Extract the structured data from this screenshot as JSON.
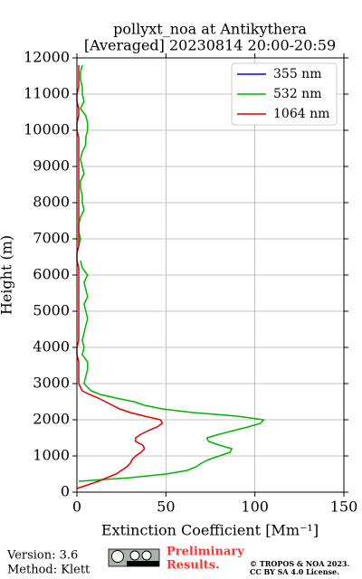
{
  "chart_data": {
    "type": "line",
    "title": [
      "pollyxt_noa at Antikythera",
      "[Averaged] 20230814 20:00-20:59"
    ],
    "xlabel": "Extinction Coefficient [Mm⁻¹]",
    "ylabel": "Height (m)",
    "xlim": [
      0,
      150
    ],
    "xticks": [
      0,
      50,
      100,
      150
    ],
    "ylim": [
      0,
      12000
    ],
    "yticks": [
      0,
      1000,
      2000,
      3000,
      4000,
      5000,
      6000,
      7000,
      8000,
      9000,
      10000,
      11000,
      12000
    ],
    "grid": true,
    "legend": "upper right",
    "y": [
      0,
      100,
      200,
      300,
      400,
      500,
      600,
      700,
      800,
      900,
      1000,
      1100,
      1200,
      1300,
      1400,
      1500,
      1600,
      1700,
      1800,
      1900,
      2000,
      2100,
      2200,
      2300,
      2400,
      2500,
      2600,
      2700,
      2800,
      2900,
      3000,
      3200,
      3400,
      3600,
      3800,
      4000,
      4200,
      4400,
      4600,
      4800,
      5000,
      5200,
      5400,
      5600,
      5800,
      6000,
      6200,
      6400,
      6600,
      6800,
      7000,
      7200,
      7400,
      7600,
      7800,
      8000,
      8200,
      8400,
      8600,
      8800,
      9000,
      9200,
      9400,
      9600,
      9800,
      10000,
      10200,
      10400,
      10600,
      10800,
      11000,
      11200,
      11400,
      11600,
      11800
    ],
    "series": [
      {
        "name": "355 nm",
        "color": "#0000ff",
        "values": [
          null,
          null,
          null,
          null,
          null,
          null,
          null,
          null,
          null,
          null,
          null,
          null,
          null,
          null,
          null,
          null,
          null,
          null,
          null,
          null,
          null,
          null,
          null,
          null,
          null,
          null,
          null,
          null,
          null,
          null,
          null,
          null,
          null,
          null,
          null,
          null,
          null,
          null,
          null,
          null,
          null,
          null,
          null,
          null,
          null,
          null,
          null,
          null,
          null,
          null,
          null,
          null,
          null,
          null,
          null,
          null,
          null,
          null,
          null,
          null,
          null,
          null,
          null,
          null,
          null,
          null,
          null,
          null,
          null,
          null,
          null,
          null,
          null,
          null,
          null
        ]
      },
      {
        "name": "532 nm",
        "color": "#00b400",
        "values": [
          null,
          null,
          null,
          1,
          30,
          50,
          62,
          67,
          70,
          74,
          80,
          86,
          87,
          80,
          74,
          73,
          80,
          88,
          96,
          103,
          105,
          90,
          65,
          48,
          38,
          32,
          22,
          13,
          8,
          6,
          4,
          5,
          6,
          6,
          3,
          4,
          3,
          4,
          5,
          6,
          5,
          4,
          6,
          5,
          4,
          6,
          3,
          2,
          null,
          1,
          2,
          1,
          1,
          2,
          4,
          3,
          3,
          2,
          2,
          4,
          3,
          2,
          3,
          5,
          5,
          6,
          6,
          5,
          2,
          4,
          3,
          3,
          2,
          2,
          3
        ]
      },
      {
        "name": "1064 nm",
        "color": "#e00000",
        "values": [
          null,
          0,
          6,
          12,
          17,
          22,
          25,
          28,
          30,
          31,
          33,
          36,
          38,
          37,
          33,
          33,
          36,
          40,
          45,
          48,
          47,
          38,
          30,
          24,
          20,
          16,
          12,
          7,
          3,
          2,
          1,
          1,
          1,
          1,
          0,
          0,
          1,
          1,
          1,
          1,
          1,
          1,
          1,
          1,
          1,
          1,
          1,
          0,
          0,
          1,
          1,
          1,
          1,
          1,
          1,
          1,
          1,
          1,
          1,
          1,
          1,
          1,
          1,
          1,
          1,
          0,
          0,
          1,
          1,
          0,
          0,
          1,
          1,
          1,
          1
        ]
      }
    ]
  },
  "footer": {
    "version": "Version: 3.6",
    "method": "Method: Klett",
    "status": [
      "Preliminary",
      "Results."
    ],
    "copyright": [
      "© TROPOS & NOA 2023.",
      "CC BY SA 4.0 License."
    ]
  }
}
